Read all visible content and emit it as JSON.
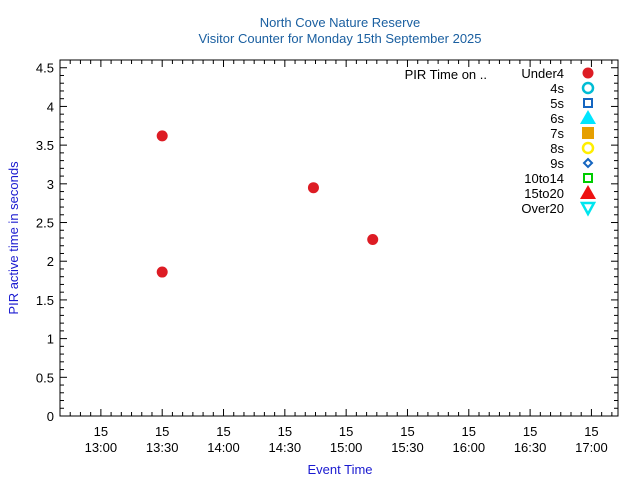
{
  "chart_data": {
    "type": "scatter",
    "title": "North Cove Nature Reserve",
    "subtitle": "Visitor Counter for Monday 15th September 2025",
    "xlabel": "Event Time",
    "ylabel": "PIR active time in seconds",
    "xlim": [
      "2025-09-15 12:40",
      "2025-09-15 17:13"
    ],
    "ylim": [
      0,
      4.6
    ],
    "x_ticks": [
      {
        "day": "15",
        "time": "13:00",
        "value": "2025-09-15 13:00"
      },
      {
        "day": "15",
        "time": "13:30",
        "value": "2025-09-15 13:30"
      },
      {
        "day": "15",
        "time": "14:00",
        "value": "2025-09-15 14:00"
      },
      {
        "day": "15",
        "time": "14:30",
        "value": "2025-09-15 14:30"
      },
      {
        "day": "15",
        "time": "15:00",
        "value": "2025-09-15 15:00"
      },
      {
        "day": "15",
        "time": "15:30",
        "value": "2025-09-15 15:30"
      },
      {
        "day": "15",
        "time": "16:00",
        "value": "2025-09-15 16:00"
      },
      {
        "day": "15",
        "time": "16:30",
        "value": "2025-09-15 16:30"
      },
      {
        "day": "15",
        "time": "17:00",
        "value": "2025-09-15 17:00"
      }
    ],
    "y_ticks": [
      "0",
      "0.5",
      "1",
      "1.5",
      "2",
      "2.5",
      "3",
      "3.5",
      "4",
      "4.5"
    ],
    "grid": false,
    "legend_title": "PIR Time on ..",
    "legend_position": "top-right",
    "series": [
      {
        "name": "Under4",
        "marker": "circle-filled",
        "color": "#dd1c24",
        "points": [
          {
            "x": "2025-09-15 13:30",
            "y": 3.62
          },
          {
            "x": "2025-09-15 13:30",
            "y": 1.86
          },
          {
            "x": "2025-09-15 14:44",
            "y": 2.95
          },
          {
            "x": "2025-09-15 15:13",
            "y": 2.28
          }
        ]
      },
      {
        "name": "4s",
        "marker": "circle-open",
        "color": "#00bcd4",
        "points": []
      },
      {
        "name": "5s",
        "marker": "square-open",
        "color": "#1565c0",
        "points": []
      },
      {
        "name": "6s",
        "marker": "triangle-up-filled",
        "color": "#00e5ff",
        "points": []
      },
      {
        "name": "7s",
        "marker": "square-filled",
        "color": "#e69f00",
        "points": []
      },
      {
        "name": "8s",
        "marker": "circle-open",
        "color": "#ffee00",
        "points": []
      },
      {
        "name": "9s",
        "marker": "diamond-open",
        "color": "#1565c0",
        "points": []
      },
      {
        "name": "10to14",
        "marker": "square-open",
        "color": "#00cc00",
        "points": []
      },
      {
        "name": "15to20",
        "marker": "triangle-up-filled",
        "color": "#ee1111",
        "points": []
      },
      {
        "name": "Over20",
        "marker": "triangle-down-open",
        "color": "#00e5ee",
        "points": []
      }
    ],
    "colors": {
      "title": "#1a5fa0",
      "axis_label": "#1a1ad0",
      "axis": "#000000"
    }
  }
}
